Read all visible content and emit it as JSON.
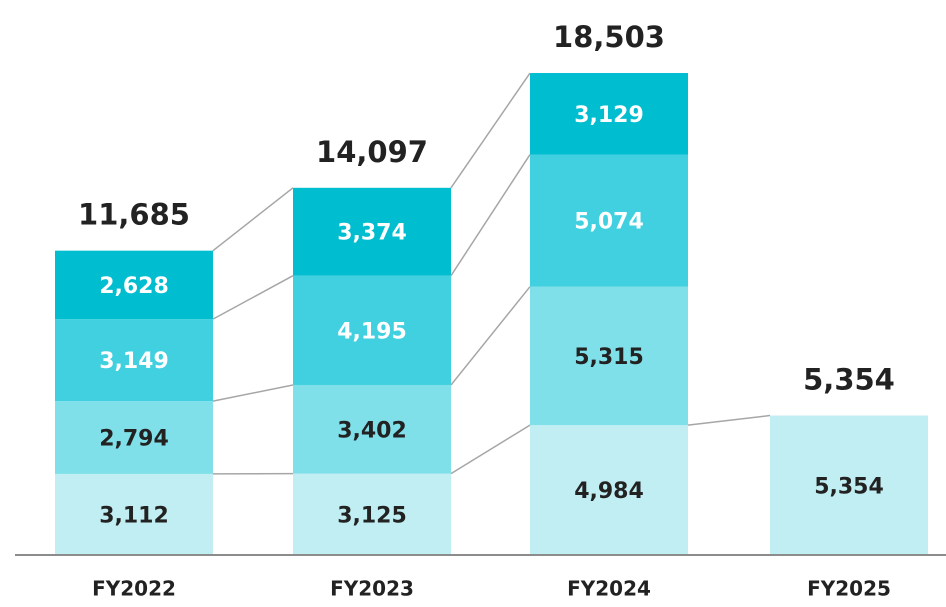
{
  "chart_data": {
    "type": "stacked_bar",
    "categories": [
      "FY2022",
      "FY2023",
      "FY2024",
      "FY2025"
    ],
    "series": [
      {
        "color": "#c1eef3",
        "label_color": "#222222",
        "values": [
          3112,
          3125,
          4984,
          5354
        ],
        "value_labels": [
          "3,112",
          "3,125",
          "4,984",
          "5,354"
        ]
      },
      {
        "color": "#80e0e9",
        "label_color": "#222222",
        "values": [
          2794,
          3402,
          5315,
          null
        ],
        "value_labels": [
          "2,794",
          "3,402",
          "5,315",
          null
        ]
      },
      {
        "color": "#40d0e0",
        "label_color": "#ffffff",
        "values": [
          3149,
          4195,
          5074,
          null
        ],
        "value_labels": [
          "3,149",
          "4,195",
          "5,074",
          null
        ]
      },
      {
        "color": "#00bdd0",
        "label_color": "#ffffff",
        "values": [
          2628,
          3374,
          3129,
          null
        ],
        "value_labels": [
          "2,628",
          "3,374",
          "3,129",
          null
        ]
      }
    ],
    "totals": {
      "values": [
        11685,
        14097,
        18503,
        5354
      ],
      "value_labels": [
        "11,685",
        "14,097",
        "18,503",
        "5,354"
      ]
    },
    "ylim": [
      0,
      20000
    ]
  }
}
